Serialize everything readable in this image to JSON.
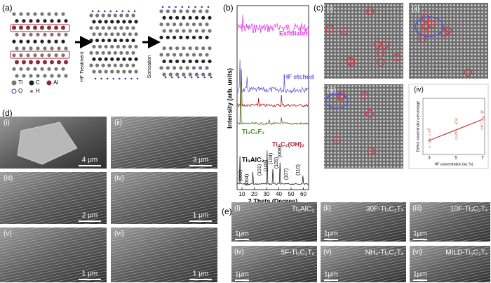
{
  "panels": {
    "a": {
      "label": "(a)",
      "steps": [
        "HF Treatment",
        "Sonication"
      ],
      "legend": [
        "Ti",
        "C",
        "Al",
        "O",
        "H"
      ]
    },
    "b": {
      "label": "(b)",
      "y_axis_label": "Intensity (arb. units)",
      "x_axis_label": "2 Theta (Degree)",
      "x_ticks": [
        10,
        20,
        30,
        40,
        50,
        60
      ],
      "traces": [
        "Exfoliated",
        "HF etched",
        "Ti₃C₂F₂",
        "Ti₃C₂(OH)₂",
        "Ti₃AlC₂"
      ],
      "peaks": [
        "(002)",
        "(004)",
        "(101)",
        "(103)",
        "(104)",
        "(105)",
        "(008)",
        "(107)",
        "(110)"
      ]
    },
    "c": {
      "label": "(c)",
      "subpanels": [
        "(i)",
        "(ii)",
        "(iii)",
        "(iv)"
      ],
      "inset": {
        "y_axis_label": "Defect concentration percentage",
        "x_axis_label": "HF concentration (wt. %)",
        "x_ticks": [
          3,
          5,
          7
        ]
      }
    },
    "d": {
      "label": "(d)",
      "images": [
        {
          "label": "(i)",
          "scale": "4 μm"
        },
        {
          "label": "(ii)",
          "scale": "3 μm"
        },
        {
          "label": "(iii)",
          "scale": "2 μm"
        },
        {
          "label": "(iv)",
          "scale": "1 μm"
        },
        {
          "label": "(v)",
          "scale": "1 μm"
        },
        {
          "label": "(vi)",
          "scale": "1 μm"
        }
      ]
    },
    "e": {
      "label": "(e)",
      "images": [
        {
          "label": "(i)",
          "name": "Ti₃AlC₂",
          "scale": "1μm"
        },
        {
          "label": "(ii)",
          "name": "30F-Ti₃C₂Tₓ",
          "scale": "1μm"
        },
        {
          "label": "(iii)",
          "name": "10F-Ti₃C₂Tₓ",
          "scale": "1μm"
        },
        {
          "label": "(iv)",
          "name": "5F-Ti₃C₂Tₓ",
          "scale": "1μm"
        },
        {
          "label": "(v)",
          "name": "NH₄-Ti₃C₂Tₓ",
          "scale": "1μm"
        },
        {
          "label": "(vi)",
          "name": "MILD-Ti₃C₂Tₓ",
          "scale": "1μm"
        }
      ]
    }
  }
}
